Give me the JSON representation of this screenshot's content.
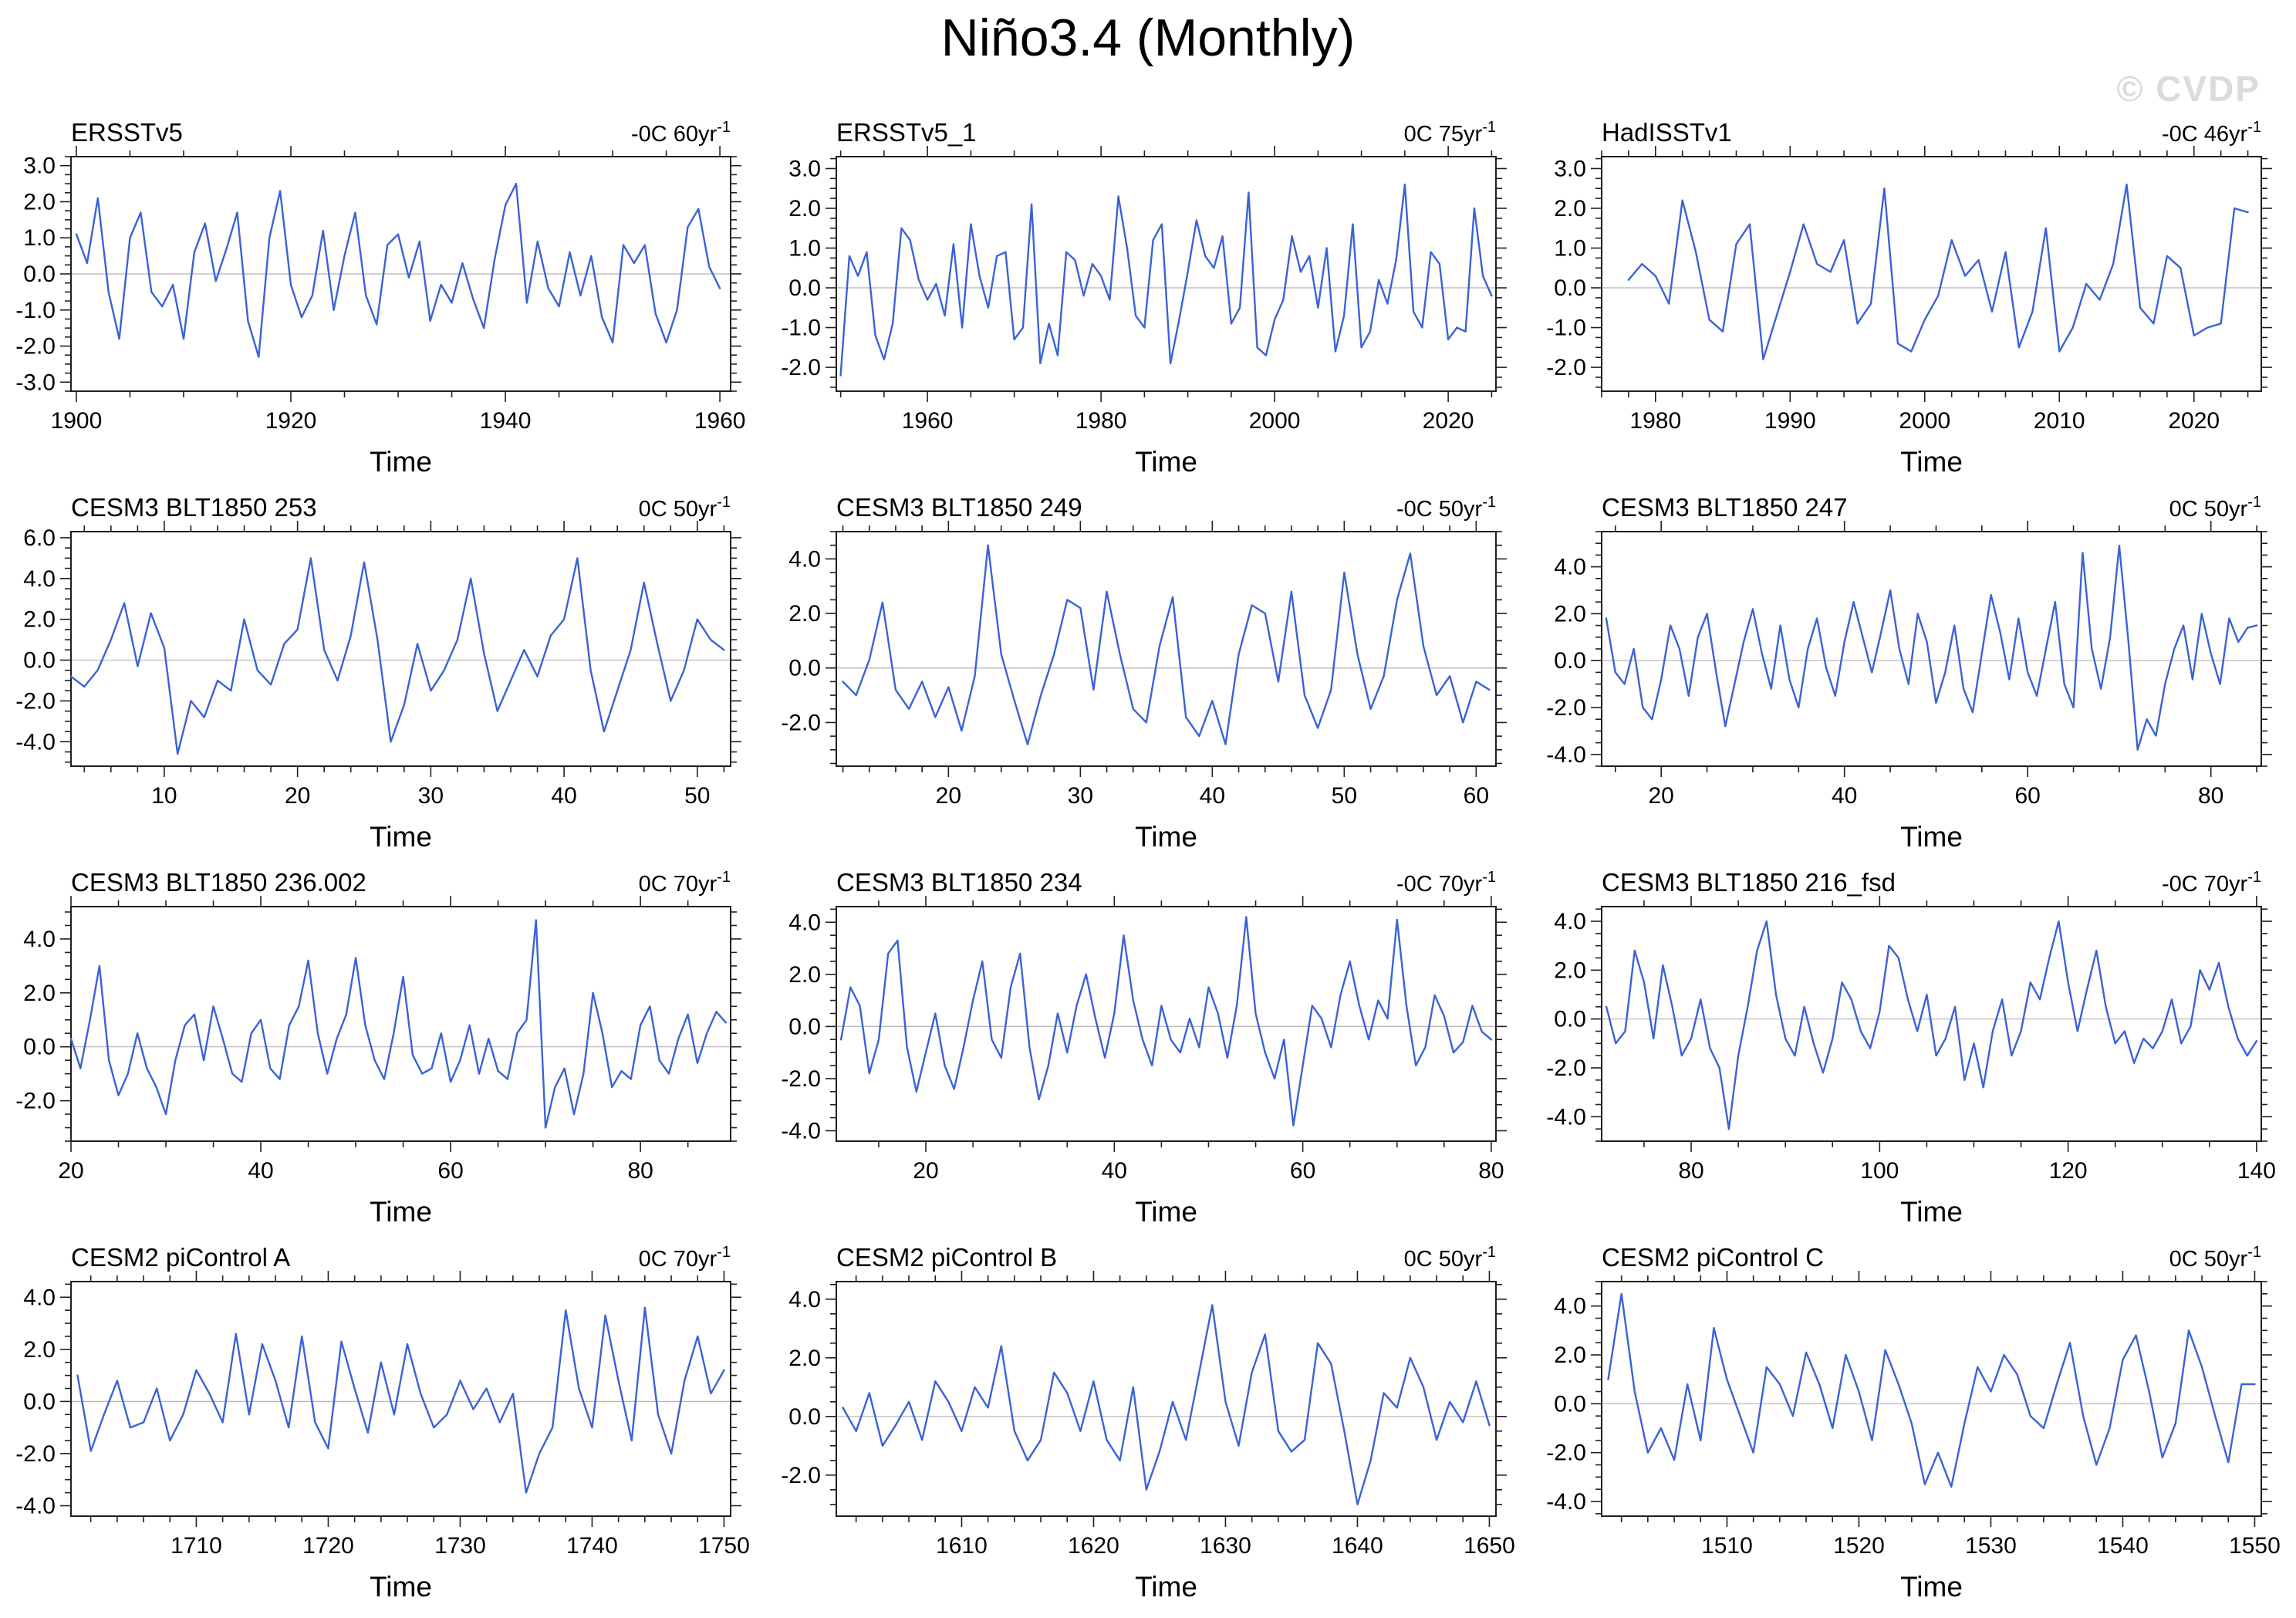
{
  "page": {
    "title": "Niño3.4 (Monthly)",
    "watermark": "© CVDP",
    "xlabel": "Time"
  },
  "style": {
    "line_color": "#3b62d6",
    "axis_color": "#1f1f1f",
    "zero_line_color": "#b5b5b5",
    "watermark_color": "#dbdbdb"
  },
  "chart_data": [
    {
      "type": "line",
      "title": "ERSSTv5",
      "trend": "-0C 60yr",
      "trend_exp": "-1",
      "xlabel": "Time",
      "xlim": [
        1899.5,
        1961
      ],
      "ylim": [
        -3.25,
        3.25
      ],
      "xticks": [
        1900,
        1920,
        1940,
        1960
      ],
      "x_minor_step": 5,
      "yticks": [
        -3,
        -2,
        -1,
        0,
        1,
        2,
        3
      ],
      "y_minor_step": 0.25,
      "x_start": 1900,
      "x_end": 1960,
      "values": [
        1.1,
        0.3,
        2.1,
        -0.5,
        -1.8,
        1.0,
        1.7,
        -0.5,
        -0.9,
        -0.3,
        -1.8,
        0.6,
        1.4,
        -0.2,
        0.7,
        1.7,
        -1.3,
        -2.3,
        1.0,
        2.3,
        -0.3,
        -1.2,
        -0.6,
        1.2,
        -1.0,
        0.5,
        1.7,
        -0.6,
        -1.4,
        0.8,
        1.1,
        -0.1,
        0.9,
        -1.3,
        -0.3,
        -0.8,
        0.3,
        -0.7,
        -1.5,
        0.4,
        1.9,
        2.5,
        -0.8,
        0.9,
        -0.4,
        -0.9,
        0.6,
        -0.6,
        0.5,
        -1.2,
        -1.9,
        0.8,
        0.3,
        0.8,
        -1.1,
        -1.9,
        -1.0,
        1.3,
        1.8,
        0.2,
        -0.4
      ]
    },
    {
      "type": "line",
      "title": "ERSSTv5_1",
      "trend": "0C 75yr",
      "trend_exp": "-1",
      "xlabel": "Time",
      "xlim": [
        1949.5,
        2025.5
      ],
      "ylim": [
        -2.6,
        3.3
      ],
      "xticks": [
        1960,
        1980,
        2000,
        2020
      ],
      "x_minor_step": 5,
      "yticks": [
        -2,
        -1,
        0,
        1,
        2,
        3
      ],
      "y_minor_step": 0.25,
      "x_start": 1950,
      "x_end": 2025,
      "values": [
        -2.2,
        0.8,
        0.3,
        0.9,
        -1.2,
        -1.8,
        -0.9,
        1.5,
        1.2,
        0.2,
        -0.3,
        0.1,
        -0.7,
        1.1,
        -1.0,
        1.6,
        0.3,
        -0.5,
        0.8,
        0.9,
        -1.3,
        -1.0,
        2.1,
        -1.9,
        -0.9,
        -1.7,
        0.9,
        0.7,
        -0.2,
        0.6,
        0.3,
        -0.3,
        2.3,
        1.0,
        -0.7,
        -1.0,
        1.2,
        1.6,
        -1.9,
        -0.8,
        0.4,
        1.7,
        0.8,
        0.5,
        1.3,
        -0.9,
        -0.5,
        2.4,
        -1.5,
        -1.7,
        -0.8,
        -0.3,
        1.3,
        0.4,
        0.8,
        -0.5,
        1.0,
        -1.6,
        -0.7,
        1.6,
        -1.5,
        -1.1,
        0.2,
        -0.4,
        0.7,
        2.6,
        -0.6,
        -1.0,
        0.9,
        0.6,
        -1.3,
        -1.0,
        -1.1,
        2.0,
        0.3,
        -0.2
      ]
    },
    {
      "type": "line",
      "title": "HadISSTv1",
      "trend": "-0C 46yr",
      "trend_exp": "-1",
      "xlabel": "Time",
      "xlim": [
        1976,
        2025
      ],
      "ylim": [
        -2.6,
        3.3
      ],
      "xticks": [
        1980,
        1990,
        2000,
        2010,
        2020
      ],
      "x_minor_step": 2,
      "yticks": [
        -2,
        -1,
        0,
        1,
        2,
        3
      ],
      "y_minor_step": 0.25,
      "x_start": 1978,
      "x_end": 2024,
      "values": [
        0.2,
        0.6,
        0.3,
        -0.4,
        2.2,
        0.9,
        -0.8,
        -1.1,
        1.1,
        1.6,
        -1.8,
        -0.7,
        0.4,
        1.6,
        0.6,
        0.4,
        1.2,
        -0.9,
        -0.4,
        2.5,
        -1.4,
        -1.6,
        -0.8,
        -0.2,
        1.2,
        0.3,
        0.7,
        -0.6,
        0.9,
        -1.5,
        -0.6,
        1.5,
        -1.6,
        -1.0,
        0.1,
        -0.3,
        0.6,
        2.6,
        -0.5,
        -0.9,
        0.8,
        0.5,
        -1.2,
        -1.0,
        -0.9,
        2.0,
        1.9
      ]
    },
    {
      "type": "line",
      "title": "CESM3 BLT1850 253",
      "trend": "0C 50yr",
      "trend_exp": "-1",
      "xlabel": "Time",
      "xlim": [
        3,
        52.5
      ],
      "ylim": [
        -5.2,
        6.3
      ],
      "xticks": [
        10,
        20,
        30,
        40,
        50
      ],
      "x_minor_step": 2,
      "yticks": [
        -4,
        -2,
        0,
        2,
        4,
        6
      ],
      "y_minor_step": 0.5,
      "x_start": 3,
      "x_end": 52,
      "values": [
        -0.8,
        -1.3,
        -0.5,
        1.0,
        2.8,
        -0.3,
        2.3,
        0.6,
        -4.6,
        -2.0,
        -2.8,
        -1.0,
        -1.5,
        2.0,
        -0.5,
        -1.2,
        0.8,
        1.5,
        5.0,
        0.5,
        -1.0,
        1.2,
        4.8,
        1.0,
        -4.0,
        -2.2,
        0.8,
        -1.5,
        -0.5,
        1.0,
        4.0,
        0.3,
        -2.5,
        -1.0,
        0.5,
        -0.8,
        1.2,
        2.0,
        5.0,
        -0.5,
        -3.5,
        -1.5,
        0.5,
        3.8,
        0.8,
        -2.0,
        -0.5,
        2.0,
        1.0,
        0.5
      ]
    },
    {
      "type": "line",
      "title": "CESM3 BLT1850 249",
      "trend": "-0C 50yr",
      "trend_exp": "-1",
      "xlabel": "Time",
      "xlim": [
        11.5,
        61.5
      ],
      "ylim": [
        -3.6,
        5.0
      ],
      "xticks": [
        20,
        30,
        40,
        50,
        60
      ],
      "x_minor_step": 2,
      "yticks": [
        -2,
        0,
        2,
        4
      ],
      "y_minor_step": 0.5,
      "x_start": 12,
      "x_end": 61,
      "values": [
        -0.5,
        -1.0,
        0.3,
        2.4,
        -0.8,
        -1.5,
        -0.5,
        -1.8,
        -0.7,
        -2.3,
        -0.3,
        4.5,
        0.5,
        -1.2,
        -2.8,
        -1.0,
        0.5,
        2.5,
        2.2,
        -0.8,
        2.8,
        0.5,
        -1.5,
        -2.0,
        0.8,
        2.6,
        -1.8,
        -2.5,
        -1.2,
        -2.8,
        0.5,
        2.3,
        2.0,
        -0.5,
        2.8,
        -1.0,
        -2.2,
        -0.8,
        3.5,
        0.5,
        -1.5,
        -0.3,
        2.5,
        4.2,
        0.8,
        -1.0,
        -0.3,
        -2.0,
        -0.5,
        -0.8
      ]
    },
    {
      "type": "line",
      "title": "CESM3 BLT1850 247",
      "trend": "0C 50yr",
      "trend_exp": "-1",
      "xlabel": "Time",
      "xlim": [
        13.5,
        85.5
      ],
      "ylim": [
        -4.5,
        5.5
      ],
      "xticks": [
        20,
        40,
        60,
        80
      ],
      "x_minor_step": 5,
      "yticks": [
        -4,
        -2,
        0,
        2,
        4
      ],
      "y_minor_step": 0.5,
      "x_start": 14,
      "x_end": 85,
      "values": [
        1.8,
        -0.5,
        -1.0,
        0.5,
        -2.0,
        -2.5,
        -0.8,
        1.5,
        0.5,
        -1.5,
        1.0,
        2.0,
        -0.5,
        -2.8,
        -1.0,
        0.8,
        2.2,
        0.3,
        -1.2,
        1.5,
        -0.8,
        -2.0,
        0.5,
        1.8,
        -0.3,
        -1.5,
        0.8,
        2.5,
        1.0,
        -0.5,
        1.2,
        3.0,
        0.5,
        -1.0,
        2.0,
        0.8,
        -1.8,
        -0.5,
        1.5,
        -1.2,
        -2.2,
        0.3,
        2.8,
        1.2,
        -0.8,
        1.8,
        -0.5,
        -1.5,
        0.5,
        2.5,
        -1.0,
        -2.0,
        4.6,
        0.5,
        -1.2,
        1.0,
        4.9,
        0.8,
        -3.8,
        -2.5,
        -3.2,
        -1.0,
        0.5,
        1.5,
        -0.8,
        2.0,
        0.3,
        -1.0,
        1.8,
        0.8,
        1.4,
        1.5
      ]
    },
    {
      "type": "line",
      "title": "CESM3 BLT1850 236.002",
      "trend": "0C 70yr",
      "trend_exp": "-1",
      "xlabel": "Time",
      "xlim": [
        20,
        89.5
      ],
      "ylim": [
        -3.5,
        5.2
      ],
      "xticks": [
        20,
        40,
        60,
        80
      ],
      "x_minor_step": 5,
      "yticks": [
        -2,
        0,
        2,
        4
      ],
      "y_minor_step": 0.5,
      "x_start": 20,
      "x_end": 89,
      "values": [
        0.3,
        -0.8,
        1.0,
        3.0,
        -0.5,
        -1.8,
        -1.0,
        0.5,
        -0.8,
        -1.5,
        -2.5,
        -0.5,
        0.8,
        1.2,
        -0.5,
        1.5,
        0.3,
        -1.0,
        -1.3,
        0.5,
        1.0,
        -0.8,
        -1.2,
        0.8,
        1.5,
        3.2,
        0.5,
        -1.0,
        0.3,
        1.2,
        3.3,
        0.8,
        -0.5,
        -1.2,
        0.5,
        2.6,
        -0.3,
        -1.0,
        -0.8,
        0.5,
        -1.3,
        -0.5,
        0.8,
        -1.0,
        0.3,
        -0.9,
        -1.2,
        0.5,
        1.0,
        4.7,
        -3.0,
        -1.5,
        -0.8,
        -2.5,
        -1.0,
        2.0,
        0.5,
        -1.5,
        -0.9,
        -1.2,
        0.8,
        1.5,
        -0.5,
        -1.0,
        0.3,
        1.2,
        -0.6,
        0.5,
        1.3,
        0.9
      ]
    },
    {
      "type": "line",
      "title": "CESM3 BLT1850 234",
      "trend": "-0C 70yr",
      "trend_exp": "-1",
      "xlabel": "Time",
      "xlim": [
        10.5,
        80.5
      ],
      "ylim": [
        -4.4,
        4.6
      ],
      "xticks": [
        20,
        40,
        60,
        80
      ],
      "x_minor_step": 5,
      "yticks": [
        -4,
        -2,
        0,
        2,
        4
      ],
      "y_minor_step": 0.5,
      "x_start": 11,
      "x_end": 80,
      "values": [
        -0.5,
        1.5,
        0.8,
        -1.8,
        -0.5,
        2.8,
        3.3,
        -0.8,
        -2.5,
        -1.0,
        0.5,
        -1.5,
        -2.4,
        -0.8,
        1.0,
        2.5,
        -0.5,
        -1.2,
        1.5,
        2.8,
        -0.8,
        -2.8,
        -1.5,
        0.5,
        -1.0,
        0.8,
        2.0,
        0.3,
        -1.2,
        0.5,
        3.5,
        1.0,
        -0.5,
        -1.5,
        0.8,
        -0.5,
        -1.0,
        0.3,
        -0.8,
        1.5,
        0.5,
        -1.2,
        0.8,
        4.2,
        0.5,
        -1.0,
        -2.0,
        -0.5,
        -3.8,
        -1.5,
        0.8,
        0.3,
        -0.8,
        1.2,
        2.5,
        0.8,
        -0.5,
        1.0,
        0.3,
        4.1,
        0.8,
        -1.5,
        -0.8,
        1.2,
        0.4,
        -1.0,
        -0.6,
        0.8,
        -0.2,
        -0.5
      ]
    },
    {
      "type": "line",
      "title": "CESM3 BLT1850 216_fsd",
      "trend": "-0C 70yr",
      "trend_exp": "-1",
      "xlabel": "Time",
      "xlim": [
        70.5,
        140.5
      ],
      "ylim": [
        -5.0,
        4.6
      ],
      "xticks": [
        80,
        100,
        120,
        140
      ],
      "x_minor_step": 5,
      "yticks": [
        -4,
        -2,
        0,
        2,
        4
      ],
      "y_minor_step": 0.5,
      "x_start": 71,
      "x_end": 140,
      "values": [
        0.5,
        -1.0,
        -0.5,
        2.8,
        1.5,
        -0.8,
        2.2,
        0.5,
        -1.5,
        -0.8,
        0.8,
        -1.2,
        -2.0,
        -4.5,
        -1.5,
        0.5,
        2.8,
        4.0,
        1.0,
        -0.8,
        -1.5,
        0.5,
        -1.0,
        -2.2,
        -0.8,
        1.5,
        0.8,
        -0.5,
        -1.2,
        0.3,
        3.0,
        2.5,
        0.8,
        -0.5,
        1.0,
        -1.5,
        -0.8,
        0.5,
        -2.5,
        -1.0,
        -2.8,
        -0.5,
        0.8,
        -1.5,
        -0.5,
        1.5,
        0.8,
        2.5,
        4.0,
        1.5,
        -0.5,
        1.2,
        2.8,
        0.5,
        -1.0,
        -0.5,
        -1.8,
        -0.8,
        -1.2,
        -0.5,
        0.8,
        -1.0,
        -0.3,
        2.0,
        1.2,
        2.3,
        0.5,
        -0.8,
        -1.5,
        -0.9
      ]
    },
    {
      "type": "line",
      "title": "CESM2 piControl A",
      "trend": "0C 70yr",
      "trend_exp": "-1",
      "xlabel": "Time",
      "xlim": [
        1700.5,
        1750.5
      ],
      "ylim": [
        -4.4,
        4.6
      ],
      "xticks": [
        1710,
        1720,
        1730,
        1740,
        1750
      ],
      "x_minor_step": 2,
      "yticks": [
        -4,
        -2,
        0,
        2,
        4
      ],
      "y_minor_step": 0.5,
      "x_start": 1701,
      "x_end": 1750,
      "values": [
        1.0,
        -1.9,
        -0.5,
        0.8,
        -1.0,
        -0.8,
        0.5,
        -1.5,
        -0.5,
        1.2,
        0.3,
        -0.8,
        2.6,
        -0.5,
        2.2,
        0.8,
        -1.0,
        2.5,
        -0.8,
        -1.8,
        2.3,
        0.5,
        -1.2,
        1.5,
        -0.5,
        2.2,
        0.3,
        -1.0,
        -0.5,
        0.8,
        -0.3,
        0.5,
        -0.8,
        0.3,
        -3.5,
        -2.0,
        -1.0,
        3.5,
        0.5,
        -1.0,
        3.3,
        0.8,
        -1.5,
        3.6,
        -0.5,
        -2.0,
        0.8,
        2.5,
        0.3,
        1.2
      ]
    },
    {
      "type": "line",
      "title": "CESM2 piControl B",
      "trend": "0C 50yr",
      "trend_exp": "-1",
      "xlabel": "Time",
      "xlim": [
        1600.5,
        1650.5
      ],
      "ylim": [
        -3.4,
        4.6
      ],
      "xticks": [
        1610,
        1620,
        1630,
        1640,
        1650
      ],
      "x_minor_step": 2,
      "yticks": [
        -2,
        0,
        2,
        4
      ],
      "y_minor_step": 0.5,
      "x_start": 1601,
      "x_end": 1650,
      "values": [
        0.3,
        -0.5,
        0.8,
        -1.0,
        -0.3,
        0.5,
        -0.8,
        1.2,
        0.5,
        -0.5,
        1.0,
        0.3,
        2.4,
        -0.5,
        -1.5,
        -0.8,
        1.5,
        0.8,
        -0.5,
        1.2,
        -0.8,
        -1.5,
        1.0,
        -2.5,
        -1.2,
        0.5,
        -0.8,
        1.5,
        3.8,
        0.5,
        -1.0,
        1.5,
        2.8,
        -0.5,
        -1.2,
        -0.8,
        2.5,
        1.8,
        -0.5,
        -3.0,
        -1.5,
        0.8,
        0.3,
        2.0,
        1.0,
        -0.8,
        0.5,
        -0.2,
        1.2,
        -0.3
      ]
    },
    {
      "type": "line",
      "title": "CESM2 piControl C",
      "trend": "0C 50yr",
      "trend_exp": "-1",
      "xlabel": "Time",
      "xlim": [
        1500.5,
        1550.5
      ],
      "ylim": [
        -4.6,
        5.0
      ],
      "xticks": [
        1510,
        1520,
        1530,
        1540,
        1550
      ],
      "x_minor_step": 2,
      "yticks": [
        -4,
        -2,
        0,
        2,
        4
      ],
      "y_minor_step": 0.5,
      "x_start": 1501,
      "x_end": 1550,
      "values": [
        1.0,
        4.5,
        0.5,
        -2.0,
        -1.0,
        -2.3,
        0.8,
        -1.5,
        3.1,
        1.0,
        -0.5,
        -2.0,
        1.5,
        0.8,
        -0.5,
        2.1,
        0.8,
        -1.0,
        2.0,
        0.5,
        -1.5,
        2.2,
        0.8,
        -0.8,
        -3.3,
        -2.0,
        -3.4,
        -0.8,
        1.5,
        0.5,
        2.0,
        1.2,
        -0.5,
        -1.0,
        0.8,
        2.5,
        -0.5,
        -2.5,
        -1.0,
        1.8,
        2.8,
        0.5,
        -2.2,
        -0.8,
        3.0,
        1.5,
        -0.5,
        -2.4,
        0.8,
        0.8
      ]
    }
  ]
}
